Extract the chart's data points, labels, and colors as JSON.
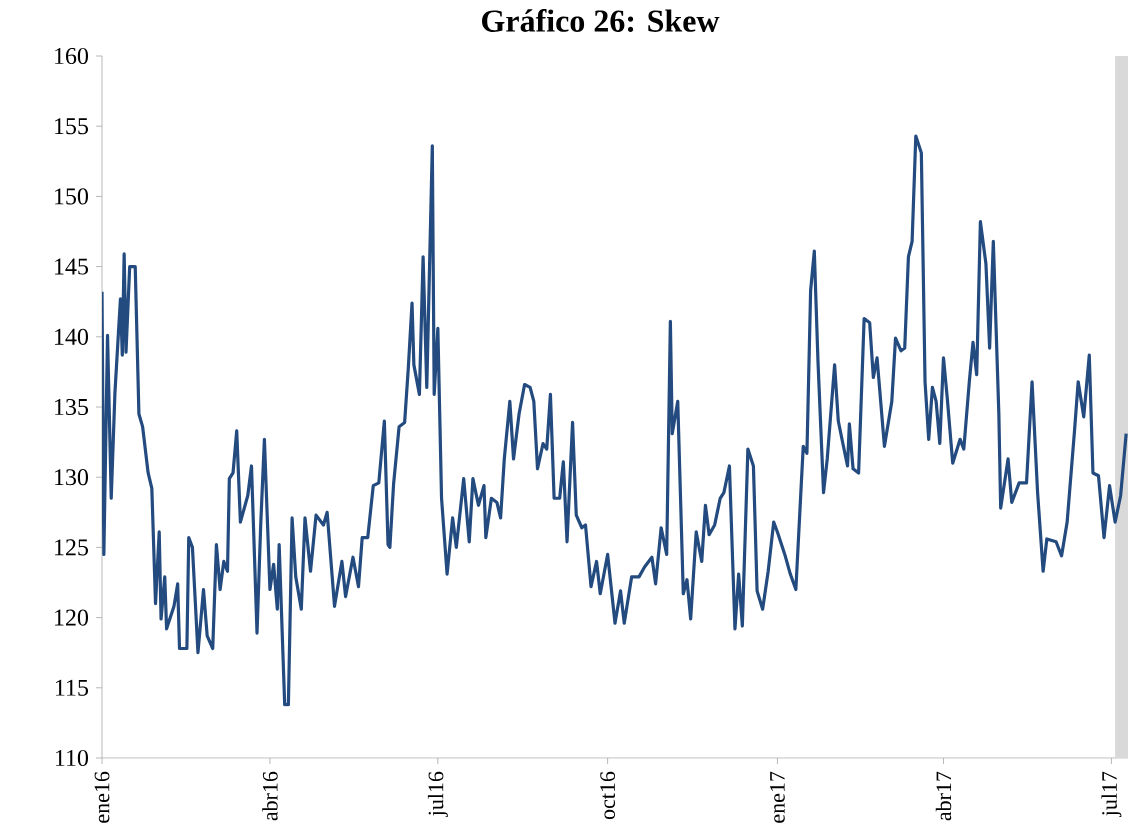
{
  "chart_data": {
    "type": "line",
    "title": "Gráfico 26: Skew",
    "color": "#244b7f",
    "line_style": "solid",
    "marker": "none",
    "xlim": [
      "2016-01-01",
      "2017-07-10"
    ],
    "ylim": [
      110,
      160
    ],
    "yticks": [
      110,
      115,
      120,
      125,
      130,
      135,
      140,
      145,
      150,
      155,
      160
    ],
    "xticks": [
      {
        "value": "2016-01-01",
        "label": "ene16"
      },
      {
        "value": "2016-04-01",
        "label": "abr16"
      },
      {
        "value": "2016-07-01",
        "label": "jul16"
      },
      {
        "value": "2016-10-01",
        "label": "oct16"
      },
      {
        "value": "2017-01-01",
        "label": "ene17"
      },
      {
        "value": "2017-04-01",
        "label": "abr17"
      },
      {
        "value": "2017-07-01",
        "label": "jul17"
      }
    ],
    "bands": [
      {
        "axis": "x",
        "from": "2017-07-03",
        "to": "2017-07-10",
        "color": "#d9d9d9"
      }
    ],
    "x": [
      "2016-01-01",
      "2016-01-02",
      "2016-01-04",
      "2016-01-06",
      "2016-01-08",
      "2016-01-10",
      "2016-01-11",
      "2016-01-12",
      "2016-01-13",
      "2016-01-14",
      "2016-01-16",
      "2016-01-19",
      "2016-01-21",
      "2016-01-23",
      "2016-01-26",
      "2016-01-28",
      "2016-01-30",
      "2016-02-01",
      "2016-02-02",
      "2016-02-04",
      "2016-02-05",
      "2016-02-09",
      "2016-02-11",
      "2016-02-12",
      "2016-02-16",
      "2016-02-17",
      "2016-02-19",
      "2016-02-22",
      "2016-02-25",
      "2016-02-27",
      "2016-03-01",
      "2016-03-03",
      "2016-03-05",
      "2016-03-07",
      "2016-03-09",
      "2016-03-10",
      "2016-03-12",
      "2016-03-14",
      "2016-03-16",
      "2016-03-20",
      "2016-03-22",
      "2016-03-25",
      "2016-03-27",
      "2016-03-29",
      "2016-04-01",
      "2016-04-03",
      "2016-04-05",
      "2016-04-06",
      "2016-04-09",
      "2016-04-11",
      "2016-04-13",
      "2016-04-15",
      "2016-04-18",
      "2016-04-20",
      "2016-04-23",
      "2016-04-26",
      "2016-04-30",
      "2016-05-02",
      "2016-05-06",
      "2016-05-10",
      "2016-05-12",
      "2016-05-16",
      "2016-05-19",
      "2016-05-21",
      "2016-05-24",
      "2016-05-27",
      "2016-05-30",
      "2016-06-02",
      "2016-06-04",
      "2016-06-05",
      "2016-06-07",
      "2016-06-10",
      "2016-06-13",
      "2016-06-15",
      "2016-06-17",
      "2016-06-18",
      "2016-06-21",
      "2016-06-23",
      "2016-06-25",
      "2016-06-28",
      "2016-06-29",
      "2016-07-01",
      "2016-07-03",
      "2016-07-06",
      "2016-07-09",
      "2016-07-11",
      "2016-07-15",
      "2016-07-18",
      "2016-07-20",
      "2016-07-23",
      "2016-07-26",
      "2016-07-27",
      "2016-07-30",
      "2016-08-02",
      "2016-08-04",
      "2016-08-06",
      "2016-08-09",
      "2016-08-11",
      "2016-08-14",
      "2016-08-17",
      "2016-08-20",
      "2016-08-22",
      "2016-08-24",
      "2016-08-27",
      "2016-08-29",
      "2016-08-31",
      "2016-09-02",
      "2016-09-05",
      "2016-09-07",
      "2016-09-09",
      "2016-09-12",
      "2016-09-14",
      "2016-09-17",
      "2016-09-19",
      "2016-09-22",
      "2016-09-25",
      "2016-09-27",
      "2016-10-01",
      "2016-10-05",
      "2016-10-08",
      "2016-10-10",
      "2016-10-14",
      "2016-10-18",
      "2016-10-21",
      "2016-10-25",
      "2016-10-27",
      "2016-10-30",
      "2016-11-02",
      "2016-11-04",
      "2016-11-05",
      "2016-11-08",
      "2016-11-11",
      "2016-11-13",
      "2016-11-15",
      "2016-11-18",
      "2016-11-21",
      "2016-11-23",
      "2016-11-25",
      "2016-11-28",
      "2016-12-01",
      "2016-12-03",
      "2016-12-06",
      "2016-12-09",
      "2016-12-11",
      "2016-12-13",
      "2016-12-16",
      "2016-12-19",
      "2016-12-21",
      "2016-12-24",
      "2016-12-27",
      "2016-12-30",
      "2017-01-01",
      "2017-01-05",
      "2017-01-08",
      "2017-01-11",
      "2017-01-15",
      "2017-01-17",
      "2017-01-19",
      "2017-01-21",
      "2017-01-23",
      "2017-01-26",
      "2017-01-28",
      "2017-02-01",
      "2017-02-03",
      "2017-02-05",
      "2017-02-08",
      "2017-02-09",
      "2017-02-11",
      "2017-02-14",
      "2017-02-17",
      "2017-02-20",
      "2017-02-22",
      "2017-02-24",
      "2017-02-28",
      "2017-03-04",
      "2017-03-06",
      "2017-03-09",
      "2017-03-11",
      "2017-03-13",
      "2017-03-15",
      "2017-03-17",
      "2017-03-20",
      "2017-03-22",
      "2017-03-24",
      "2017-03-26",
      "2017-03-28",
      "2017-03-30",
      "2017-04-01",
      "2017-04-03",
      "2017-04-06",
      "2017-04-10",
      "2017-04-12",
      "2017-04-15",
      "2017-04-17",
      "2017-04-19",
      "2017-04-21",
      "2017-04-24",
      "2017-04-26",
      "2017-04-28",
      "2017-05-01",
      "2017-05-02",
      "2017-05-06",
      "2017-05-08",
      "2017-05-12",
      "2017-05-16",
      "2017-05-19",
      "2017-05-22",
      "2017-05-25",
      "2017-05-27",
      "2017-06-01",
      "2017-06-04",
      "2017-06-07",
      "2017-06-11",
      "2017-06-13",
      "2017-06-16",
      "2017-06-19",
      "2017-06-21",
      "2017-06-24",
      "2017-06-27",
      "2017-06-30",
      "2017-07-03",
      "2017-07-06",
      "2017-07-09"
    ],
    "values": [
      143.2,
      124.5,
      140.1,
      128.5,
      136,
      140.5,
      142.7,
      138.7,
      145.9,
      138.9,
      145,
      145,
      134.5,
      133.6,
      130.3,
      129.2,
      121,
      126.1,
      119.9,
      122.9,
      119.2,
      120.8,
      122.4,
      117.8,
      117.8,
      125.7,
      125,
      117.5,
      122,
      118.7,
      117.8,
      125.2,
      122,
      124,
      123.3,
      129.9,
      130.3,
      133.3,
      126.8,
      128.7,
      130.8,
      118.9,
      126.6,
      132.7,
      122,
      123.8,
      120.6,
      125.2,
      113.8,
      113.8,
      127.1,
      122.9,
      120.6,
      127.1,
      123.3,
      127.3,
      126.6,
      127.5,
      120.8,
      124,
      121.5,
      124.3,
      122.2,
      125.7,
      125.7,
      129.4,
      129.6,
      134,
      125.2,
      125,
      129.5,
      133.6,
      133.9,
      137.8,
      142.4,
      138,
      135.9,
      145.7,
      136.4,
      153.6,
      135.9,
      140.6,
      128.5,
      123.1,
      127.1,
      125,
      129.9,
      125.4,
      129.9,
      128,
      129.4,
      125.7,
      128.5,
      128.2,
      127.1,
      131.3,
      135.4,
      131.3,
      134.5,
      136.6,
      136.4,
      135.4,
      130.6,
      132.4,
      132,
      135.9,
      128.5,
      128.5,
      131.1,
      125.4,
      133.9,
      127.3,
      126.4,
      126.6,
      122.2,
      124,
      121.7,
      124.5,
      119.6,
      121.9,
      119.6,
      122.9,
      122.9,
      123.6,
      124.3,
      122.4,
      126.4,
      124.5,
      141.1,
      133.1,
      135.4,
      121.7,
      122.7,
      119.9,
      126.1,
      124,
      128,
      125.9,
      126.6,
      128.5,
      128.9,
      130.8,
      119.2,
      123.1,
      119.4,
      132,
      130.8,
      121.9,
      120.6,
      123.3,
      126.8,
      126.1,
      124.5,
      123.1,
      122,
      132.2,
      131.7,
      143.3,
      146.1,
      138.2,
      128.9,
      131.3,
      138,
      134,
      132.7,
      130.8,
      133.8,
      130.6,
      130.3,
      141.3,
      141,
      137.1,
      138.5,
      132.2,
      135.4,
      139.9,
      139,
      139.2,
      145.7,
      146.8,
      154.3,
      153.1,
      136.8,
      132.7,
      136.4,
      135.4,
      132.4,
      138.5,
      135.7,
      131,
      132.7,
      132,
      136.8,
      139.6,
      137.3,
      148.2,
      145.2,
      139.2,
      146.8,
      134.5,
      127.8,
      131.3,
      128.2,
      129.6,
      129.6,
      136.8,
      128.9,
      123.3,
      125.6,
      125.4,
      124.4,
      126.8,
      133.3,
      136.8,
      134.3,
      138.7,
      130.3,
      130.1,
      125.7,
      129.4,
      126.8,
      128.7,
      133.1
    ]
  }
}
